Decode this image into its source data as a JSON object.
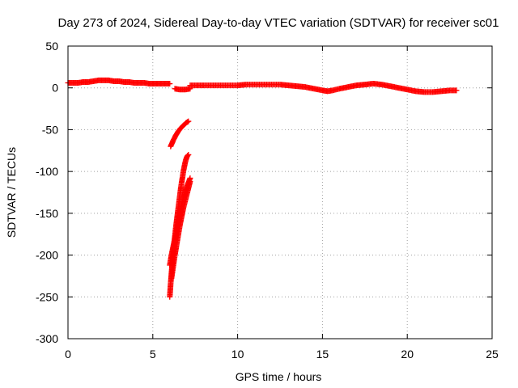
{
  "chart_data": {
    "type": "scatter",
    "title": "Day 273 of 2024, Sidereal Day-to-day VTEC variation (SDTVAR) for receiver sc01",
    "xlabel": "GPS time / hours",
    "ylabel": "SDTVAR / TECUs",
    "xlim": [
      0,
      25
    ],
    "ylim": [
      -300,
      50
    ],
    "xticks": [
      0,
      5,
      10,
      15,
      20,
      25
    ],
    "yticks": [
      50,
      0,
      -50,
      -100,
      -150,
      -200,
      -250,
      -300
    ],
    "grid": true,
    "legend": "none",
    "marker": "plus",
    "color": "#ff0000",
    "series": [
      {
        "segments": [
          {
            "x": [
              0.0,
              0.3,
              0.6,
              0.9,
              1.2,
              1.5,
              1.8,
              2.1,
              2.4,
              2.7,
              3.0,
              3.3,
              3.6,
              3.9,
              4.2,
              4.5,
              4.8,
              5.1,
              5.4,
              5.7,
              6.0
            ],
            "y": [
              6,
              6,
              6,
              7,
              7,
              8,
              9,
              9,
              9,
              8,
              8,
              7,
              7,
              6,
              6,
              6,
              5,
              5,
              5,
              5,
              5
            ]
          },
          {
            "x": [
              6.3,
              6.6,
              6.9,
              7.2
            ],
            "y": [
              -1,
              -2,
              -2,
              -1
            ]
          },
          {
            "x": [
              7.2,
              7.6,
              8.0,
              8.5,
              9.0,
              9.5,
              10.0,
              10.5,
              11.0,
              11.5,
              12.0,
              12.5,
              13.0,
              13.5,
              14.0,
              14.5,
              15.0,
              15.3,
              15.6,
              16.0,
              16.5,
              17.0,
              17.5,
              18.0,
              18.5,
              19.0,
              19.5,
              20.0,
              20.5,
              21.0,
              21.5,
              22.0,
              22.5,
              22.9
            ],
            "y": [
              3,
              3,
              3,
              3,
              3,
              3,
              3,
              4,
              4,
              4,
              4,
              4,
              3,
              2,
              1,
              -1,
              -3,
              -4,
              -3,
              -1,
              1,
              3,
              4,
              5,
              4,
              2,
              0,
              -2,
              -4,
              -5,
              -5,
              -4,
              -3,
              -3
            ]
          },
          {
            "x": [
              6.05,
              6.2,
              6.35,
              6.5,
              6.65,
              6.8,
              6.95,
              7.1
            ],
            "y": [
              -70,
              -63,
              -57,
              -52,
              -48,
              -45,
              -42,
              -40
            ]
          },
          {
            "x": [
              6.0,
              6.05,
              6.1,
              6.15,
              6.2,
              6.25,
              6.3,
              6.35,
              6.4,
              6.45,
              6.5,
              6.55,
              6.6,
              6.65,
              6.7,
              6.75,
              6.8,
              6.85,
              6.9,
              6.95,
              7.0,
              7.05,
              7.1
            ],
            "y": [
              -250,
              -235,
              -222,
              -210,
              -198,
              -188,
              -178,
              -168,
              -160,
              -152,
              -144,
              -136,
              -128,
              -120,
              -113,
              -107,
              -100,
              -95,
              -90,
              -86,
              -83,
              -81,
              -80
            ]
          },
          {
            "x": [
              6.0,
              6.1,
              6.2,
              6.3,
              6.4,
              6.5,
              6.6,
              6.7,
              6.8,
              6.9,
              7.0,
              7.1,
              7.2
            ],
            "y": [
              -212,
              -200,
              -190,
              -180,
              -170,
              -160,
              -150,
              -140,
              -132,
              -125,
              -118,
              -113,
              -108
            ]
          },
          {
            "x": [
              6.1,
              6.2,
              6.3,
              6.4,
              6.5,
              6.6,
              6.7,
              6.8,
              6.9,
              7.0,
              7.1,
              7.2
            ],
            "y": [
              -228,
              -214,
              -200,
              -188,
              -176,
              -164,
              -154,
              -144,
              -136,
              -128,
              -120,
              -112
            ]
          }
        ]
      }
    ]
  }
}
